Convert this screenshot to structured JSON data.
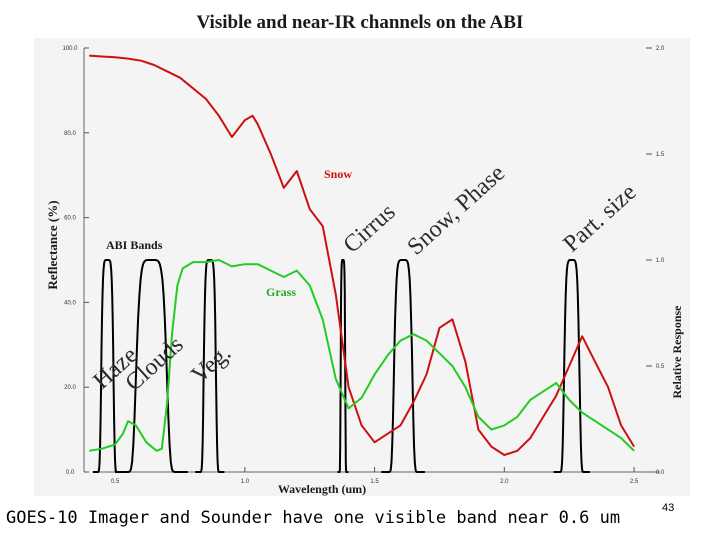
{
  "slide": {
    "title": "Visible and near-IR channels on the ABI",
    "caption": "GOES-10 Imager and Sounder have one visible band near 0.6 um",
    "page_number": "43"
  },
  "colors": {
    "background": "#ffffff",
    "plot_bg": "#f4f4f4",
    "snow": "#cc1111",
    "grass": "#22cc22",
    "bands": "#000000",
    "text": "#1a1a1a",
    "feature_text": "#2c2c2c",
    "curve_label_snow": "#cc1111",
    "curve_label_grass": "#22aa22"
  },
  "chart_data": {
    "type": "line",
    "title": "Visible and near-IR channels on the ABI",
    "xlabel": "Wavelength (um)",
    "ylabel": "Reflectance (%)",
    "y2label": "Relative Response",
    "xlim": [
      0.38,
      2.6
    ],
    "ylim": [
      0,
      100
    ],
    "y2lim": [
      0,
      2.0
    ],
    "xticks": [
      "0.5",
      "1.0",
      "1.5",
      "2.0",
      "2.5"
    ],
    "xtick_values": [
      0.5,
      1.0,
      1.5,
      2.0,
      2.5
    ],
    "yticks": [
      "0.0",
      "20.0",
      "40.0",
      "60.0",
      "80.0",
      "100.0"
    ],
    "ytick_values": [
      0,
      20,
      40,
      60,
      80,
      100
    ],
    "y2ticks": [
      "0.0",
      "0.5",
      "1.0",
      "1.5",
      "2.0"
    ],
    "y2tick_values": [
      0,
      0.5,
      1.0,
      1.5,
      2.0
    ],
    "grid": false,
    "series": [
      {
        "name": "Snow",
        "kind": "reflectance",
        "x": [
          0.4,
          0.45,
          0.5,
          0.55,
          0.6,
          0.65,
          0.7,
          0.75,
          0.8,
          0.85,
          0.9,
          0.95,
          1.0,
          1.03,
          1.05,
          1.1,
          1.15,
          1.2,
          1.25,
          1.3,
          1.35,
          1.4,
          1.45,
          1.5,
          1.55,
          1.6,
          1.65,
          1.7,
          1.75,
          1.8,
          1.85,
          1.9,
          1.95,
          2.0,
          2.05,
          2.1,
          2.15,
          2.2,
          2.25,
          2.3,
          2.35,
          2.4,
          2.45,
          2.5
        ],
        "y": [
          98.2,
          98.0,
          97.8,
          97.5,
          97.0,
          96.0,
          94.5,
          93.0,
          90.5,
          88.0,
          84.0,
          79.0,
          83.0,
          84.0,
          82.0,
          75.0,
          67.0,
          71.0,
          62.0,
          58.0,
          42.0,
          20.0,
          11.0,
          7.0,
          9.0,
          11.0,
          16.5,
          23.0,
          34.0,
          36.0,
          26.0,
          10.0,
          6.0,
          4.0,
          5.0,
          8.0,
          13.0,
          18.0,
          25.0,
          32.0,
          26.0,
          20.0,
          11.0,
          6.0
        ]
      },
      {
        "name": "Grass",
        "kind": "reflectance",
        "x": [
          0.4,
          0.45,
          0.5,
          0.53,
          0.55,
          0.58,
          0.62,
          0.66,
          0.68,
          0.7,
          0.72,
          0.74,
          0.76,
          0.8,
          0.85,
          0.9,
          0.95,
          1.0,
          1.05,
          1.1,
          1.15,
          1.2,
          1.25,
          1.3,
          1.35,
          1.4,
          1.45,
          1.5,
          1.55,
          1.6,
          1.65,
          1.7,
          1.75,
          1.8,
          1.85,
          1.9,
          1.95,
          2.0,
          2.05,
          2.1,
          2.15,
          2.2,
          2.25,
          2.3,
          2.35,
          2.4,
          2.45,
          2.5
        ],
        "y": [
          5.0,
          5.5,
          6.5,
          9.0,
          12.0,
          11.0,
          7.0,
          5.0,
          5.5,
          16.0,
          33.0,
          44.0,
          48.0,
          49.5,
          49.5,
          50.0,
          48.5,
          49.0,
          49.0,
          47.5,
          46.0,
          47.5,
          44.0,
          36.0,
          22.0,
          15.0,
          17.5,
          23.0,
          27.5,
          31.0,
          32.5,
          31.0,
          28.0,
          25.0,
          20.0,
          13.0,
          10.0,
          11.0,
          13.0,
          17.0,
          19.0,
          21.0,
          17.0,
          14.0,
          12.0,
          10.0,
          8.0,
          5.0
        ]
      }
    ],
    "bands_label": "ABI Bands",
    "bands": [
      {
        "center": 0.47,
        "width": 0.04
      },
      {
        "center": 0.64,
        "width": 0.1
      },
      {
        "center": 0.865,
        "width": 0.04
      },
      {
        "center": 1.378,
        "width": 0.015
      },
      {
        "center": 1.61,
        "width": 0.06
      },
      {
        "center": 2.26,
        "width": 0.05
      }
    ],
    "curve_labels": {
      "snow": "Snow",
      "grass": "Grass"
    },
    "annotations": [
      "Haze",
      "Clouds",
      "Veg.",
      "Cirrus",
      "Snow, Phase",
      "Part. size"
    ]
  }
}
